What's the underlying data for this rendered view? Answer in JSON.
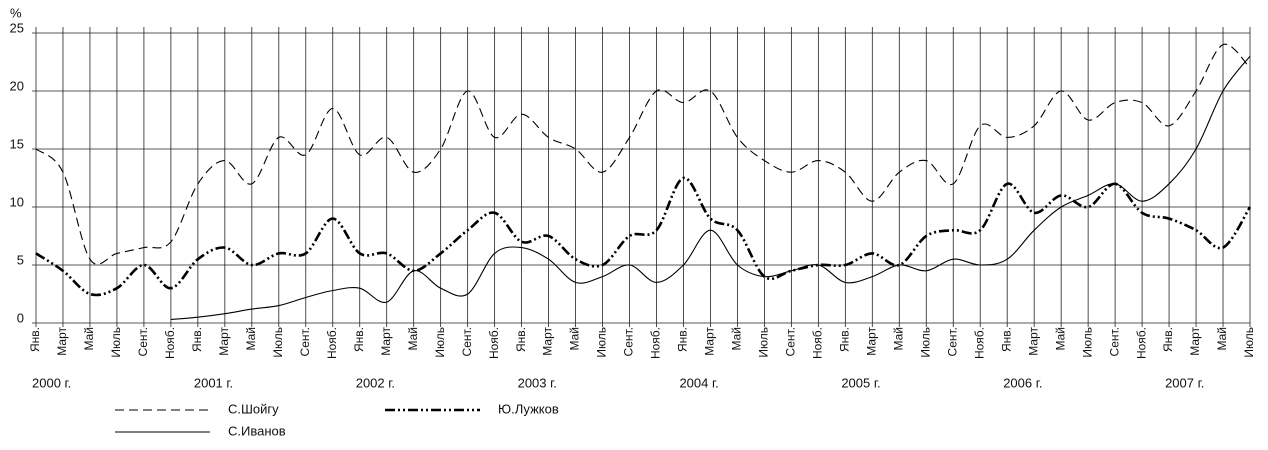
{
  "chart_data": {
    "type": "line",
    "y_label": "%",
    "year_groups": [
      {
        "label": "2000 г.",
        "months": [
          "Янв.",
          "Март",
          "Май",
          "Июль",
          "Сент.",
          "Нояб."
        ]
      },
      {
        "label": "2001 г.",
        "months": [
          "Янв.",
          "Март",
          "Май",
          "Июль",
          "Сент.",
          "Нояб."
        ]
      },
      {
        "label": "2002 г.",
        "months": [
          "Янв.",
          "Март",
          "Май",
          "Июль",
          "Сент.",
          "Нояб."
        ]
      },
      {
        "label": "2003 г.",
        "months": [
          "Янв.",
          "Март",
          "Май",
          "Июль",
          "Сент.",
          "Нояб."
        ]
      },
      {
        "label": "2004 г.",
        "months": [
          "Янв.",
          "Март",
          "Май",
          "Июль",
          "Сент.",
          "Нояб."
        ]
      },
      {
        "label": "2005 г.",
        "months": [
          "Янв.",
          "Март",
          "Май",
          "Июль",
          "Сент.",
          "Нояб."
        ]
      },
      {
        "label": "2006 г.",
        "months": [
          "Янв.",
          "Март",
          "Май",
          "Июль",
          "Сент.",
          "Нояб."
        ]
      },
      {
        "label": "2007 г.",
        "months": [
          "Янв.",
          "Март",
          "Май",
          "Июль"
        ]
      }
    ],
    "series": [
      {
        "name": "С.Шойгу",
        "color": "#000000",
        "style": "dashed",
        "values": [
          15,
          13,
          5.5,
          6,
          6.5,
          7,
          12,
          14,
          12,
          16,
          14.5,
          18.5,
          14.5,
          16,
          13,
          15,
          20,
          16,
          18,
          16,
          15,
          13,
          16,
          20,
          19,
          20,
          16,
          14,
          13,
          14,
          13,
          10.5,
          13,
          14,
          12,
          17,
          16,
          17,
          20,
          17.5,
          19,
          19,
          17,
          20,
          24,
          22
        ]
      },
      {
        "name": "С.Иванов",
        "color": "#000000",
        "style": "solid",
        "values": [
          null,
          null,
          null,
          null,
          null,
          0.3,
          0.5,
          0.8,
          1.2,
          1.5,
          2.2,
          2.8,
          3,
          1.8,
          4.5,
          3,
          2.5,
          6,
          6.5,
          5.5,
          3.5,
          4,
          5,
          3.5,
          5,
          8,
          5,
          4,
          4.5,
          5,
          3.5,
          4,
          5,
          4.5,
          5.5,
          5,
          5.5,
          8,
          10,
          11,
          12,
          10.5,
          12,
          15,
          20,
          23
        ]
      },
      {
        "name": "Ю.Лужков",
        "color": "#000000",
        "style": "dashdot",
        "values": [
          6,
          4.5,
          2.5,
          3,
          5,
          3,
          5.5,
          6.5,
          5,
          6,
          6,
          9,
          6,
          6,
          4.5,
          6,
          8,
          9.5,
          7,
          7.5,
          5.5,
          5,
          7.5,
          8,
          12.5,
          9,
          8,
          4,
          4.5,
          5,
          5,
          6,
          5,
          7.5,
          8,
          8,
          12,
          9.5,
          11,
          10,
          12,
          9.5,
          9,
          8,
          6.5,
          10
        ]
      }
    ],
    "ylim": [
      0,
      25
    ],
    "yticks": [
      0,
      5,
      10,
      15,
      20,
      25
    ],
    "grid": true
  }
}
